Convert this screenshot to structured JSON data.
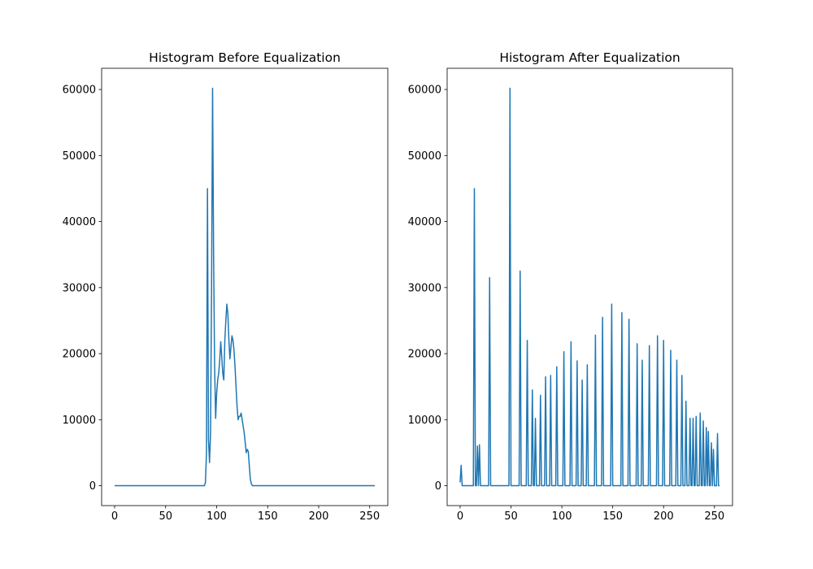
{
  "chart_data": [
    {
      "type": "line",
      "title": "Histogram Before Equalization",
      "color": "#1f77b4",
      "x": [
        0,
        88,
        89,
        90,
        91,
        92,
        93,
        94,
        95,
        96,
        97,
        98,
        99,
        100,
        101,
        102,
        103,
        104,
        105,
        106,
        107,
        108,
        109,
        110,
        111,
        112,
        113,
        114,
        115,
        116,
        117,
        118,
        119,
        120,
        121,
        122,
        123,
        124,
        125,
        126,
        127,
        128,
        129,
        130,
        131,
        132,
        133,
        134,
        135,
        255
      ],
      "values": [
        0,
        0,
        500,
        5000,
        45000,
        7000,
        3500,
        8000,
        30000,
        60200,
        35000,
        18000,
        10200,
        14000,
        16000,
        17000,
        19000,
        21800,
        19500,
        17000,
        16000,
        22000,
        25000,
        27500,
        26000,
        22000,
        19200,
        21000,
        22700,
        22000,
        20500,
        18000,
        15000,
        12000,
        10000,
        10500,
        10500,
        11000,
        10000,
        9000,
        8000,
        6500,
        5000,
        5500,
        5200,
        3000,
        1000,
        300,
        0,
        0
      ],
      "xlim": [
        -12.75,
        267.75
      ],
      "xticks": [
        0,
        50,
        100,
        150,
        200,
        250
      ],
      "ylim": [
        -3010,
        63210
      ],
      "yticks": [
        0,
        10000,
        20000,
        30000,
        40000,
        50000,
        60000
      ]
    },
    {
      "type": "line",
      "title": "Histogram After Equalization",
      "color": "#1f77b4",
      "x": [
        0,
        1,
        2,
        13,
        14,
        15,
        16,
        17,
        18,
        19,
        20,
        28,
        29,
        30,
        48,
        49,
        50,
        58,
        59,
        60,
        65,
        66,
        67,
        70,
        71,
        72,
        73,
        74,
        75,
        78,
        79,
        80,
        83,
        84,
        85,
        88,
        89,
        90,
        94,
        95,
        96,
        101,
        102,
        103,
        108,
        109,
        110,
        114,
        115,
        116,
        119,
        120,
        121,
        124,
        125,
        126,
        132,
        133,
        134,
        139,
        140,
        141,
        148,
        149,
        150,
        158,
        159,
        160,
        165,
        166,
        167,
        173,
        174,
        175,
        178,
        179,
        180,
        185,
        186,
        187,
        193,
        194,
        195,
        199,
        200,
        201,
        206,
        207,
        208,
        212,
        213,
        214,
        217,
        218,
        219,
        221,
        222,
        223,
        225,
        226,
        227,
        228,
        229,
        230,
        231,
        232,
        233,
        235,
        236,
        237,
        238,
        239,
        240,
        241,
        242,
        243,
        244,
        245,
        246,
        247,
        248,
        249,
        250,
        251,
        252,
        253,
        254,
        255
      ],
      "values": [
        500,
        3100,
        0,
        0,
        45000,
        0,
        0,
        6000,
        0,
        6200,
        0,
        0,
        31500,
        0,
        0,
        60200,
        0,
        0,
        32500,
        0,
        0,
        22000,
        0,
        0,
        14500,
        0,
        0,
        10200,
        0,
        0,
        13700,
        0,
        0,
        16500,
        0,
        0,
        16700,
        0,
        0,
        18000,
        0,
        0,
        20300,
        0,
        0,
        21800,
        0,
        0,
        18900,
        0,
        0,
        16000,
        0,
        0,
        18300,
        0,
        0,
        22800,
        0,
        0,
        25500,
        0,
        0,
        27500,
        0,
        0,
        26200,
        0,
        0,
        25200,
        0,
        0,
        21500,
        0,
        0,
        19000,
        0,
        0,
        21200,
        0,
        0,
        22700,
        0,
        0,
        22000,
        0,
        0,
        20500,
        0,
        0,
        19000,
        0,
        0,
        16700,
        0,
        0,
        12800,
        0,
        0,
        10200,
        0,
        0,
        10200,
        0,
        0,
        10500,
        0,
        0,
        11000,
        0,
        0,
        9800,
        0,
        0,
        8800,
        0,
        8200,
        0,
        0,
        6500,
        0,
        5500,
        0,
        0,
        0,
        7900,
        0,
        0
      ],
      "xlim": [
        -12.75,
        267.75
      ],
      "xticks": [
        0,
        50,
        100,
        150,
        200,
        250
      ],
      "ylim": [
        -3010,
        63210
      ],
      "yticks": [
        0,
        10000,
        20000,
        30000,
        40000,
        50000,
        60000
      ]
    }
  ]
}
